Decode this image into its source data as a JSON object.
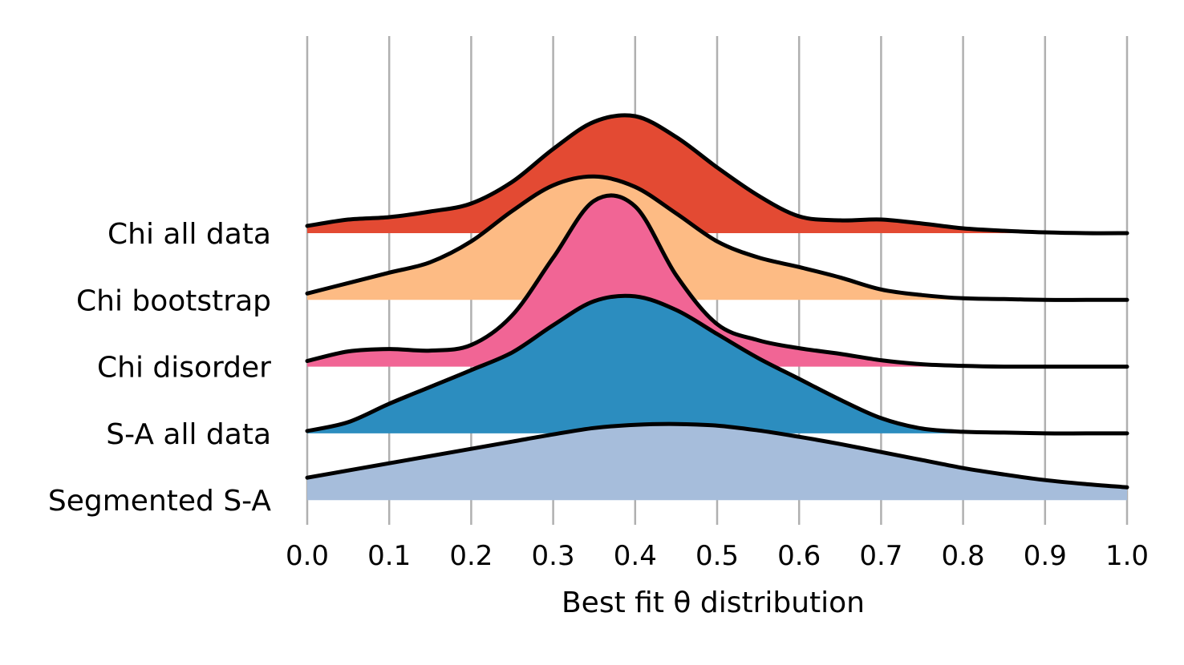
{
  "chart_data": {
    "type": "ridgeline",
    "xlabel": "Best fit θ distribution",
    "xlim": [
      0.0,
      1.0
    ],
    "x_ticks": [
      "0.0",
      "0.1",
      "0.2",
      "0.3",
      "0.4",
      "0.5",
      "0.6",
      "0.7",
      "0.8",
      "0.9",
      "1.0"
    ],
    "grid": "vertical",
    "x": [
      0.0,
      0.05,
      0.1,
      0.15,
      0.2,
      0.25,
      0.3,
      0.35,
      0.4,
      0.45,
      0.5,
      0.55,
      0.6,
      0.65,
      0.7,
      0.75,
      0.8,
      0.85,
      0.9,
      0.95,
      1.0
    ],
    "series": [
      {
        "name": "Chi all data",
        "color": "#e34a33",
        "values": [
          0.09,
          0.17,
          0.2,
          0.27,
          0.37,
          0.64,
          1.05,
          1.39,
          1.46,
          1.2,
          0.82,
          0.47,
          0.21,
          0.16,
          0.17,
          0.12,
          0.06,
          0.03,
          0.01,
          0.0,
          0.0
        ]
      },
      {
        "name": "Chi bootstrap",
        "color": "#fdbb84",
        "values": [
          0.08,
          0.21,
          0.34,
          0.47,
          0.73,
          1.11,
          1.43,
          1.54,
          1.41,
          1.08,
          0.73,
          0.53,
          0.41,
          0.28,
          0.13,
          0.06,
          0.02,
          0.01,
          0.0,
          0.0,
          0.0
        ]
      },
      {
        "name": "Chi disorder",
        "color": "#f16595",
        "values": [
          0.07,
          0.19,
          0.22,
          0.2,
          0.27,
          0.64,
          1.36,
          2.07,
          2.0,
          1.14,
          0.53,
          0.33,
          0.23,
          0.16,
          0.08,
          0.03,
          0.01,
          0.0,
          0.0,
          0.0,
          0.0
        ]
      },
      {
        "name": "S-A all data",
        "color": "#2c8dbf",
        "values": [
          0.03,
          0.14,
          0.37,
          0.58,
          0.79,
          1.01,
          1.35,
          1.65,
          1.71,
          1.54,
          1.24,
          0.94,
          0.68,
          0.42,
          0.19,
          0.06,
          0.02,
          0.01,
          0.0,
          0.0,
          0.0
        ]
      },
      {
        "name": "Segmented S-A",
        "color": "#a6bddb",
        "values": [
          0.28,
          0.37,
          0.46,
          0.55,
          0.64,
          0.73,
          0.82,
          0.9,
          0.94,
          0.95,
          0.93,
          0.87,
          0.79,
          0.7,
          0.6,
          0.5,
          0.4,
          0.32,
          0.25,
          0.2,
          0.16
        ]
      }
    ]
  }
}
